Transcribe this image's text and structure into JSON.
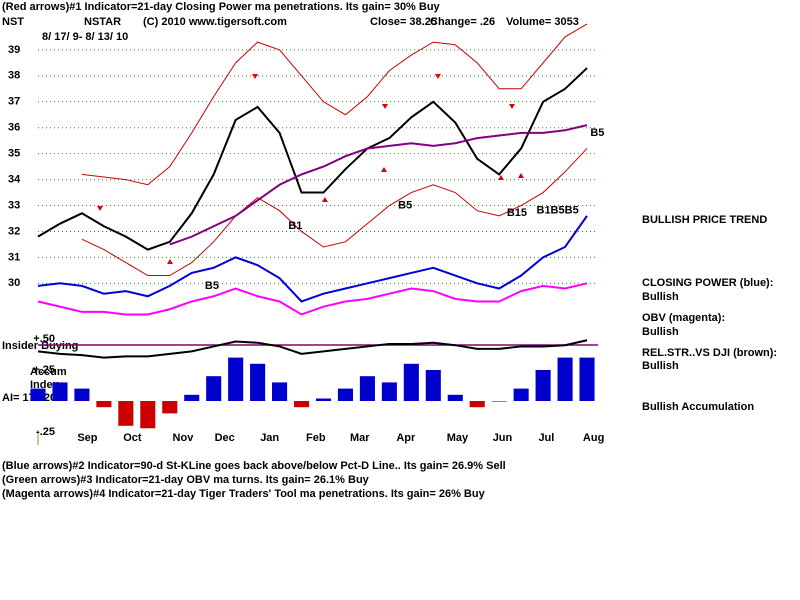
{
  "header": {
    "line1": "(Red arrows)#1 Indicator=21-day Closing Power ma penetrations.  Its gain= 30% Buy",
    "symbol": "NST",
    "company": "NSTAR",
    "copyright": "(C) 2010 www.tigersoft.com",
    "close": "Close=  38.25",
    "change": "Change= .26",
    "volume": "Volume=  3053",
    "dates": "8/ 17/ 9- 8/ 13/ 10"
  },
  "footer": [
    "(Blue arrows)#2 Indicator=90-d St-KLine goes back above/below Pct-D Line..  Its gain= 26.9% Sell",
    "(Green arrows)#3 Indicator=21-day OBV ma turns.  Its gain= 26.1% Buy",
    "(Magenta arrows)#4 Indicator=21-day Tiger Traders' Tool ma penetrations.  Its gain= 26% Buy"
  ],
  "sidebar": [
    "BULLISH PRICE TREND",
    "CLOSING POWER (blue):",
    "Bullish",
    "OBV (magenta):",
    "Bullish",
    "REL.STR..VS DJI (brown):",
    "Bullish",
    "Bullish Accumulation"
  ],
  "chart_data": [
    {
      "type": "line",
      "x": [
        0,
        2,
        4,
        6,
        8,
        10,
        12,
        14,
        16,
        18,
        20,
        22,
        24,
        26,
        28,
        30,
        32,
        34,
        36,
        38,
        40,
        42,
        44,
        46,
        48,
        50
      ],
      "xlim": [
        0,
        51
      ],
      "ylim": [
        28.2,
        40.5
      ],
      "yticks": [
        30,
        31,
        32,
        33,
        34,
        35,
        36,
        37,
        38,
        39
      ],
      "grid": true,
      "series": [
        {
          "color": "#000000",
          "values": [
            31.8,
            32.3,
            32.7,
            32.2,
            31.8,
            31.3,
            31.6,
            32.7,
            34.2,
            36.3,
            36.8,
            35.8,
            33.5,
            33.5,
            34.4,
            35.2,
            35.6,
            36.4,
            37.0,
            36.2,
            34.8,
            34.2,
            35.2,
            37.0,
            37.5,
            38.3
          ]
        },
        {
          "color": "#cc0000",
          "values": [
            null,
            null,
            34.2,
            34.1,
            34.0,
            33.8,
            34.5,
            35.8,
            37.2,
            38.5,
            39.3,
            39.0,
            38.0,
            37.0,
            36.5,
            37.2,
            38.2,
            38.8,
            39.3,
            39.2,
            38.5,
            37.5,
            37.5,
            38.5,
            39.5,
            40.0
          ]
        },
        {
          "color": "#cc0000",
          "values": [
            null,
            null,
            31.7,
            31.3,
            30.8,
            30.3,
            30.3,
            30.8,
            31.6,
            32.6,
            33.3,
            32.8,
            32.0,
            31.4,
            31.6,
            32.3,
            33.0,
            33.5,
            33.8,
            33.5,
            32.8,
            32.6,
            33.0,
            33.5,
            34.3,
            35.2
          ]
        },
        {
          "color": "#800080",
          "values": [
            null,
            null,
            null,
            null,
            null,
            null,
            31.5,
            31.8,
            32.2,
            32.6,
            33.2,
            33.8,
            34.2,
            34.5,
            34.9,
            35.2,
            35.3,
            35.4,
            35.3,
            35.4,
            35.6,
            35.7,
            35.8,
            35.8,
            35.9,
            36.1
          ]
        },
        {
          "color": "#0000dd",
          "values": [
            29.9,
            30.0,
            29.9,
            29.6,
            29.7,
            29.5,
            29.9,
            30.4,
            30.6,
            31.0,
            30.7,
            30.2,
            29.3,
            29.6,
            29.8,
            30.0,
            30.2,
            30.4,
            30.6,
            30.3,
            30.0,
            29.8,
            30.3,
            31.0,
            31.4,
            32.6
          ]
        },
        {
          "color": "#ff00ff",
          "values": [
            29.3,
            29.1,
            28.9,
            28.9,
            28.8,
            28.8,
            29.0,
            29.3,
            29.5,
            29.8,
            29.5,
            29.3,
            28.8,
            29.1,
            29.3,
            29.4,
            29.6,
            29.8,
            29.7,
            29.4,
            29.3,
            29.3,
            29.7,
            29.9,
            29.8,
            30.0
          ]
        }
      ],
      "annotations": [
        {
          "text": "B1",
          "x": 22.8,
          "y": 32.2
        },
        {
          "text": "B5",
          "x": 15.2,
          "y": 29.9
        },
        {
          "text": "B15",
          "x": 42.7,
          "y": 32.7
        },
        {
          "text": "B5",
          "x": 50.3,
          "y": 35.8
        },
        {
          "text": "B5",
          "x": 32.8,
          "y": 33
        },
        {
          "text": "B1B5B5",
          "x": 45.4,
          "y": 32.8
        }
      ]
    },
    {
      "type": "bar",
      "x": [
        0,
        2,
        4,
        6,
        8,
        10,
        12,
        14,
        16,
        18,
        20,
        22,
        24,
        26,
        28,
        30,
        32,
        34,
        36,
        38,
        40,
        42,
        44,
        46,
        48,
        50
      ],
      "xlim": [
        0,
        51
      ],
      "ylim": [
        -0.25,
        0.5
      ],
      "yticks": [
        {
          "value": 0.5,
          "label": "+.50"
        },
        {
          "value": 0.25,
          "label": "+.25"
        },
        {
          "value": -0.25,
          "label": "-.25"
        }
      ],
      "xticks": [
        {
          "value": 4.5,
          "label": "Sep"
        },
        {
          "value": 8.6,
          "label": "Oct"
        },
        {
          "value": 13.2,
          "label": "Nov"
        },
        {
          "value": 17,
          "label": "Dec"
        },
        {
          "value": 21.1,
          "label": "Jan"
        },
        {
          "value": 25.3,
          "label": "Feb"
        },
        {
          "value": 29.3,
          "label": "Mar"
        },
        {
          "value": 33.5,
          "label": "Apr"
        },
        {
          "value": 38.2,
          "label": "May"
        },
        {
          "value": 42.3,
          "label": "Jun"
        },
        {
          "value": 46.3,
          "label": "Jul"
        },
        {
          "value": 50.6,
          "label": "Aug"
        }
      ],
      "color": "#0000cc",
      "negative_color": "#cc0000",
      "values": [
        0.1,
        0.15,
        0.1,
        -0.05,
        -0.2,
        -0.22,
        -0.1,
        0.05,
        0.2,
        0.35,
        0.3,
        0.15,
        -0.05,
        0.02,
        0.1,
        0.2,
        0.15,
        0.3,
        0.25,
        0.05,
        -0.05,
        0.0,
        0.1,
        0.25,
        0.35,
        0.35
      ],
      "line_color": "#000000",
      "line_values": [
        0.4,
        0.38,
        0.37,
        0.35,
        0.36,
        0.36,
        0.38,
        0.4,
        0.44,
        0.48,
        0.47,
        0.44,
        0.38,
        0.4,
        0.42,
        0.44,
        0.46,
        0.46,
        0.47,
        0.45,
        0.42,
        0.42,
        0.44,
        0.44,
        0.45,
        0.49
      ],
      "labels": [
        "Insider Buying",
        "Accum",
        "Index",
        "AI= 175/200"
      ]
    }
  ]
}
